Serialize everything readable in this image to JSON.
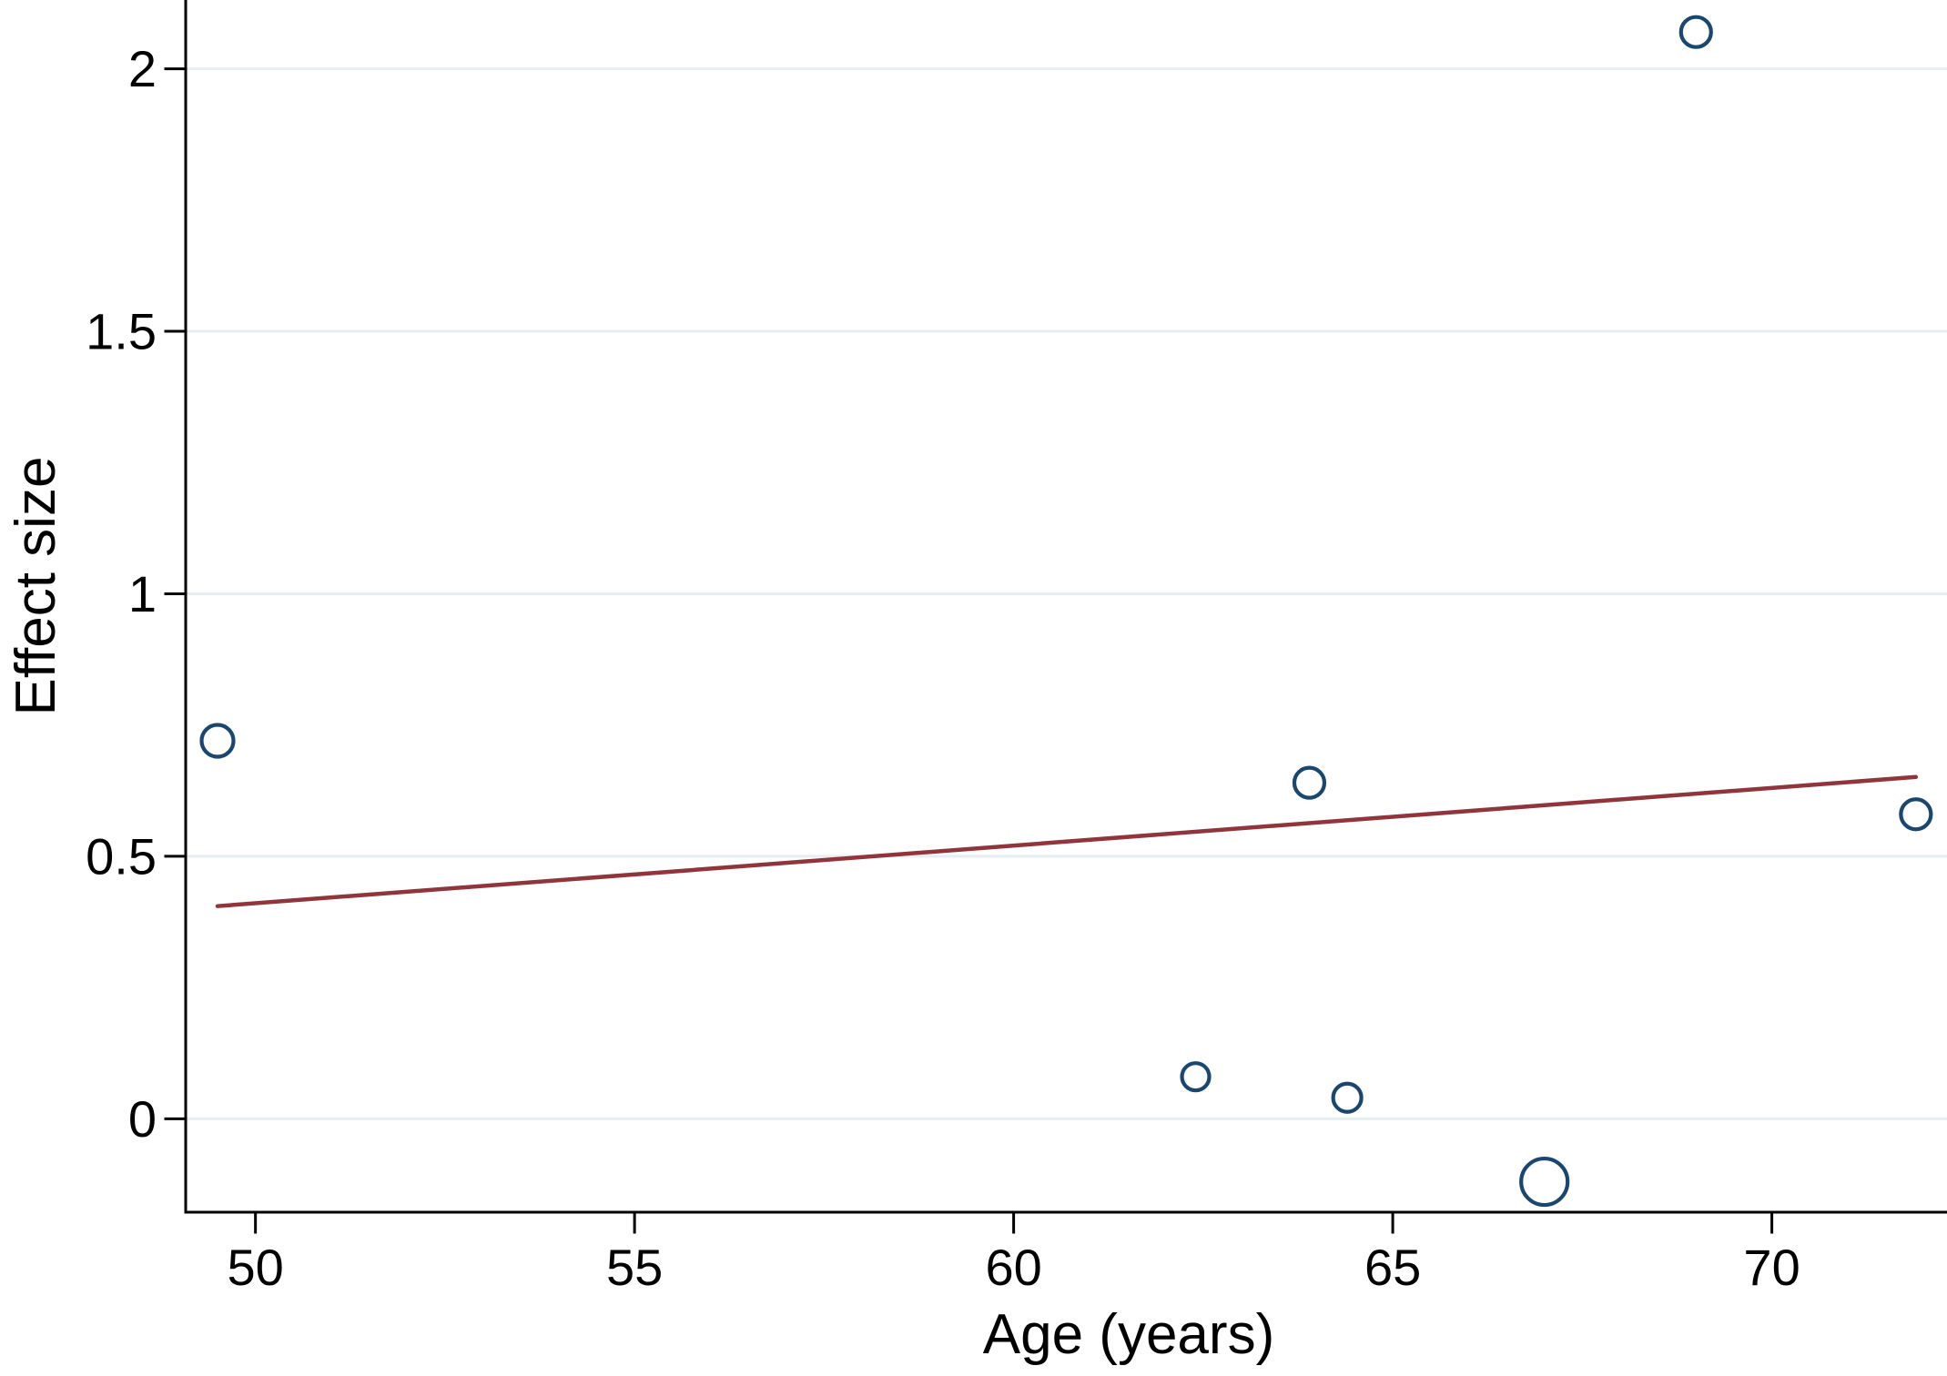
{
  "chart_data": {
    "type": "scatter",
    "subtype": "meta-regression-bubble-plot",
    "xlabel": "Age (years)",
    "ylabel": "Effect size",
    "xlim": [
      49.08,
      72.31
    ],
    "ylim": [
      -0.178,
      2.131
    ],
    "xticks": [
      50,
      55,
      60,
      65,
      70
    ],
    "xtick_labels": [
      "50",
      "55",
      "60",
      "65",
      "70"
    ],
    "yticks": [
      0,
      0.5,
      1,
      1.5,
      2
    ],
    "ytick_labels": [
      "0",
      "0.5",
      "1",
      "1.5",
      "2"
    ],
    "grid": "horizontal-only",
    "legend_position": "none",
    "series": [
      {
        "name": "study-effect-sizes",
        "type": "bubble",
        "marker": "open-circle",
        "color": "#1A476F",
        "points": [
          {
            "x": 49.5,
            "y": 0.72,
            "r": 17.5
          },
          {
            "x": 62.4,
            "y": 0.08,
            "r": 15
          },
          {
            "x": 63.9,
            "y": 0.64,
            "r": 16.5
          },
          {
            "x": 64.4,
            "y": 0.04,
            "r": 15.5
          },
          {
            "x": 67.0,
            "y": -0.12,
            "r": 25.5
          },
          {
            "x": 69.0,
            "y": 2.07,
            "r": 16.5
          },
          {
            "x": 71.9,
            "y": 0.58,
            "r": 16.5
          }
        ]
      },
      {
        "name": "regression-fit-line",
        "type": "line",
        "color": "#90353B",
        "points": [
          {
            "x": 49.5,
            "y": 0.405
          },
          {
            "x": 71.9,
            "y": 0.651
          }
        ]
      }
    ],
    "colors": {
      "marker_stroke": "#1A476F",
      "fit_line": "#90353B",
      "gridline": "#E7EEF0",
      "axis": "#000000",
      "background": "#FFFFFF"
    }
  }
}
